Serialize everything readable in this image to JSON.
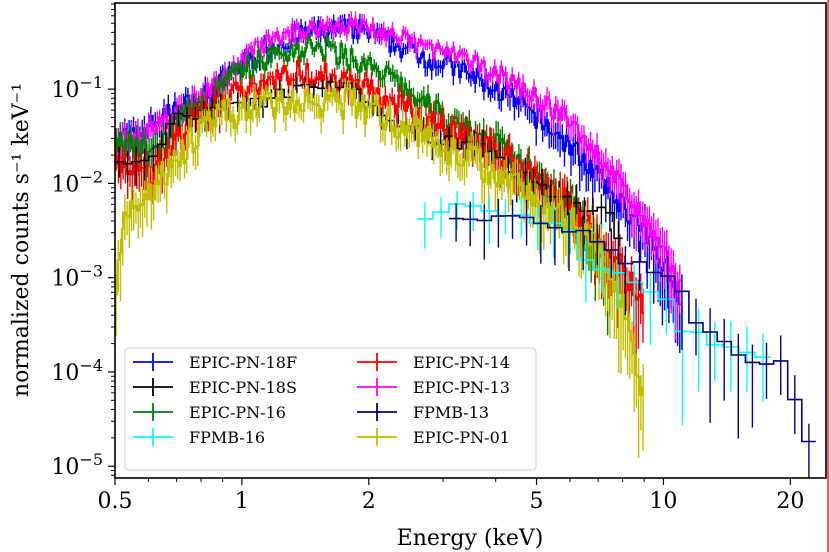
{
  "chart_data": {
    "type": "line",
    "title": "",
    "xlabel": "Energy (keV)",
    "ylabel": "normalized counts s⁻¹ keV⁻¹",
    "xscale": "log",
    "yscale": "log",
    "xlim": [
      0.5,
      24.3
    ],
    "ylim": [
      7.5e-06,
      0.82
    ],
    "grid": false,
    "legend_position": "lower-left",
    "legend_columns": 2,
    "x_ticks": [
      {
        "value": 0.5,
        "label": "0.5"
      },
      {
        "value": 1,
        "label": "1"
      },
      {
        "value": 2,
        "label": "2"
      },
      {
        "value": 5,
        "label": "5"
      },
      {
        "value": 10,
        "label": "10"
      },
      {
        "value": 20,
        "label": "20"
      }
    ],
    "y_ticks": [
      {
        "value": 1e-05,
        "base": "10",
        "exp": "−5"
      },
      {
        "value": 0.0001,
        "base": "10",
        "exp": "−4"
      },
      {
        "value": 0.001,
        "base": "10",
        "exp": "−3"
      },
      {
        "value": 0.01,
        "base": "10",
        "exp": "−2"
      },
      {
        "value": 0.1,
        "base": "10",
        "exp": "−1"
      }
    ],
    "series": [
      {
        "name": "EPIC-PN-18F",
        "color": "#0000ff",
        "x": [
          0.5,
          0.55,
          0.6,
          0.65,
          0.7,
          0.8,
          0.9,
          1.0,
          1.1,
          1.25,
          1.4,
          1.6,
          1.8,
          2.0,
          2.3,
          2.6,
          3.0,
          3.5,
          4.0,
          4.5,
          5.0,
          5.5,
          6.0,
          6.5,
          7.0,
          7.5,
          8.0,
          8.5,
          9.0,
          9.5,
          10.0,
          10.5,
          11.0
        ],
        "y": [
          0.035,
          0.03,
          0.04,
          0.05,
          0.06,
          0.08,
          0.12,
          0.18,
          0.24,
          0.32,
          0.38,
          0.42,
          0.44,
          0.4,
          0.3,
          0.24,
          0.19,
          0.14,
          0.1,
          0.07,
          0.05,
          0.035,
          0.025,
          0.018,
          0.012,
          0.008,
          0.006,
          0.004,
          0.003,
          0.002,
          0.0015,
          0.0009,
          0.0005
        ]
      },
      {
        "name": "EPIC-PN-18S",
        "color": "#000000",
        "x": [
          0.5,
          0.6,
          0.7,
          0.8,
          0.9,
          1.0,
          1.2,
          1.4,
          1.6,
          1.8,
          2.0,
          2.3,
          2.6,
          3.0,
          3.5,
          4.0,
          4.5,
          5.0,
          5.5,
          6.0,
          6.5,
          7.0,
          7.5,
          8.0
        ],
        "y": [
          0.018,
          0.015,
          0.05,
          0.06,
          0.07,
          0.07,
          0.08,
          0.1,
          0.11,
          0.1,
          0.08,
          0.05,
          0.035,
          0.03,
          0.025,
          0.02,
          0.012,
          0.01,
          0.008,
          0.006,
          0.005,
          0.006,
          0.004,
          0.002
        ]
      },
      {
        "name": "EPIC-PN-16",
        "color": "#008000",
        "x": [
          0.5,
          0.55,
          0.6,
          0.65,
          0.7,
          0.8,
          0.9,
          1.0,
          1.1,
          1.25,
          1.4,
          1.6,
          1.8,
          2.0,
          2.3,
          2.6,
          3.0,
          3.5,
          4.0,
          4.5,
          5.0,
          5.5,
          6.0,
          6.5,
          7.0,
          7.5
        ],
        "y": [
          0.03,
          0.025,
          0.02,
          0.025,
          0.04,
          0.06,
          0.1,
          0.15,
          0.2,
          0.24,
          0.27,
          0.26,
          0.22,
          0.17,
          0.12,
          0.08,
          0.05,
          0.035,
          0.025,
          0.018,
          0.012,
          0.008,
          0.006,
          0.004,
          0.002,
          0.001
        ]
      },
      {
        "name": "FPMB-16",
        "color": "#00ffff",
        "x": [
          2.6,
          2.8,
          3.0,
          3.2,
          3.4,
          3.6,
          3.8,
          4.0,
          4.5,
          5.0,
          5.5,
          6.0,
          6.5,
          7.0,
          7.5,
          8.0,
          9.0,
          10.0,
          11.0,
          12.0,
          14.0,
          16.0,
          18.0
        ],
        "y": [
          0.0038,
          0.0047,
          0.0052,
          0.006,
          0.007,
          0.0055,
          0.006,
          0.005,
          0.0045,
          0.004,
          0.0035,
          0.003,
          0.0018,
          0.0012,
          0.0009,
          0.0011,
          0.0008,
          0.0006,
          0.0003,
          0.00025,
          0.0002,
          0.00015,
          0.00014
        ]
      },
      {
        "name": "EPIC-PN-14",
        "color": "#ff0000",
        "x": [
          0.5,
          0.55,
          0.6,
          0.65,
          0.7,
          0.8,
          0.9,
          1.0,
          1.1,
          1.25,
          1.4,
          1.6,
          1.8,
          2.0,
          2.3,
          2.6,
          3.0,
          3.5,
          4.0,
          4.5,
          5.0,
          5.5,
          6.0,
          6.5,
          7.0,
          7.5,
          8.0,
          8.5,
          9.0
        ],
        "y": [
          0.015,
          0.015,
          0.012,
          0.018,
          0.03,
          0.05,
          0.07,
          0.1,
          0.12,
          0.14,
          0.15,
          0.14,
          0.12,
          0.1,
          0.07,
          0.05,
          0.04,
          0.03,
          0.022,
          0.016,
          0.012,
          0.008,
          0.006,
          0.004,
          0.0025,
          0.0018,
          0.0012,
          0.0008,
          0.0005
        ]
      },
      {
        "name": "EPIC-PN-13",
        "color": "#ff00ff",
        "x": [
          0.5,
          0.55,
          0.6,
          0.65,
          0.7,
          0.8,
          0.9,
          1.0,
          1.1,
          1.25,
          1.4,
          1.6,
          1.8,
          2.0,
          2.3,
          2.6,
          3.0,
          3.5,
          4.0,
          4.5,
          5.0,
          5.5,
          6.0,
          6.5,
          7.0,
          7.5,
          8.0,
          8.5,
          9.0,
          9.5,
          10.0,
          10.5,
          11.0
        ],
        "y": [
          0.035,
          0.03,
          0.035,
          0.045,
          0.055,
          0.08,
          0.13,
          0.2,
          0.28,
          0.36,
          0.42,
          0.46,
          0.48,
          0.44,
          0.36,
          0.3,
          0.25,
          0.19,
          0.15,
          0.11,
          0.08,
          0.06,
          0.045,
          0.03,
          0.02,
          0.014,
          0.009,
          0.006,
          0.004,
          0.0028,
          0.0018,
          0.0012,
          0.0008
        ]
      },
      {
        "name": "FPMB-13",
        "color": "#000080",
        "x": [
          3.1,
          3.3,
          3.5,
          3.7,
          3.9,
          4.1,
          4.3,
          4.6,
          5.0,
          5.5,
          6.0,
          6.5,
          7.0,
          7.5,
          8.0,
          9.0,
          10.0,
          11.0,
          12.0,
          14.0,
          16.0,
          19.0,
          23.0
        ],
        "y": [
          0.0045,
          0.0035,
          0.004,
          0.0045,
          0.004,
          0.0045,
          0.0042,
          0.005,
          0.0038,
          0.0035,
          0.003,
          0.0028,
          0.0022,
          0.0018,
          0.0015,
          0.0013,
          0.0011,
          0.0007,
          0.00035,
          0.00022,
          0.00012,
          0.00012,
          1.3e-05
        ]
      },
      {
        "name": "EPIC-PN-01",
        "color": "#bfbf00",
        "x": [
          0.5,
          0.52,
          0.55,
          0.6,
          0.65,
          0.7,
          0.8,
          0.9,
          1.0,
          1.1,
          1.25,
          1.4,
          1.6,
          1.8,
          2.0,
          2.3,
          2.6,
          3.0,
          3.5,
          4.0,
          4.5,
          5.0,
          5.5,
          6.0,
          6.5,
          7.0,
          7.5,
          8.0,
          8.5,
          9.0
        ],
        "y": [
          0.0008,
          0.003,
          0.006,
          0.008,
          0.012,
          0.02,
          0.035,
          0.05,
          0.06,
          0.065,
          0.07,
          0.07,
          0.075,
          0.07,
          0.06,
          0.045,
          0.035,
          0.025,
          0.018,
          0.013,
          0.01,
          0.007,
          0.005,
          0.004,
          0.003,
          0.002,
          0.0012,
          0.0005,
          0.0002,
          5e-05
        ]
      }
    ]
  }
}
